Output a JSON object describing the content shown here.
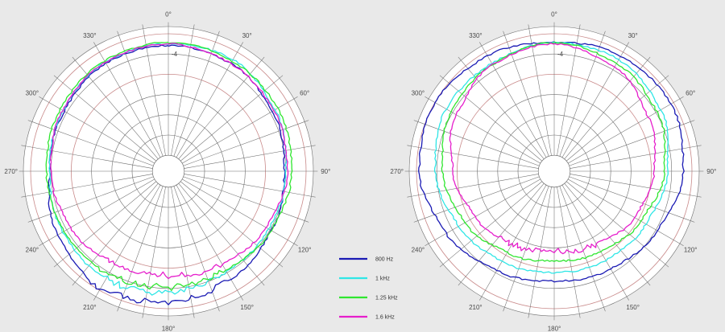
{
  "legend": {
    "placement": "bottom-center",
    "items": [
      {
        "label": "800 Hz",
        "color": "#1a1ab4"
      },
      {
        "label": "1 kHz",
        "color": "#2fe6e6"
      },
      {
        "label": "1.25 kHz",
        "color": "#2fe62f"
      },
      {
        "label": "1.6 kHz",
        "color": "#e61ecc"
      }
    ]
  },
  "chart_data": [
    {
      "type": "polar-line",
      "angle_ticks": [
        "0°",
        "30°",
        "60°",
        "90°",
        "120°",
        "150°",
        "180°",
        "210°",
        "240°",
        "270°",
        "300°",
        "330°"
      ],
      "radial_tick_labels": [
        "-4"
      ],
      "grid": true,
      "series": [
        {
          "name": "800 Hz",
          "color": "#1a1ab4",
          "angles": [
            0,
            30,
            60,
            90,
            120,
            150,
            180,
            210,
            240,
            270,
            300,
            330,
            360
          ],
          "radius": [
            0.87,
            0.86,
            0.83,
            0.8,
            0.82,
            0.86,
            0.91,
            0.93,
            0.88,
            0.82,
            0.83,
            0.86,
            0.87
          ]
        },
        {
          "name": "1 kHz",
          "color": "#2fe6e6",
          "angles": [
            0,
            30,
            60,
            90,
            120,
            150,
            180,
            210,
            240,
            270,
            300,
            330,
            360
          ],
          "radius": [
            0.88,
            0.89,
            0.85,
            0.81,
            0.8,
            0.8,
            0.84,
            0.86,
            0.84,
            0.82,
            0.84,
            0.87,
            0.88
          ]
        },
        {
          "name": "1.25 kHz",
          "color": "#2fe62f",
          "angles": [
            0,
            30,
            60,
            90,
            120,
            150,
            180,
            210,
            240,
            270,
            300,
            330,
            360
          ],
          "radius": [
            0.89,
            0.88,
            0.87,
            0.85,
            0.82,
            0.79,
            0.8,
            0.82,
            0.83,
            0.84,
            0.86,
            0.88,
            0.89
          ]
        },
        {
          "name": "1.6 kHz",
          "color": "#e61ecc",
          "angles": [
            0,
            30,
            60,
            90,
            120,
            150,
            180,
            210,
            240,
            270,
            300,
            330,
            360
          ],
          "radius": [
            0.88,
            0.86,
            0.84,
            0.82,
            0.78,
            0.74,
            0.72,
            0.74,
            0.78,
            0.81,
            0.84,
            0.87,
            0.88
          ]
        }
      ]
    },
    {
      "type": "polar-line",
      "angle_ticks": [
        "0°",
        "30°",
        "60°",
        "90°",
        "120°",
        "150°",
        "180°",
        "210°",
        "240°",
        "270°",
        "300°",
        "330°"
      ],
      "radial_tick_labels": [
        "-4"
      ],
      "grid": true,
      "series": [
        {
          "name": "800 Hz",
          "color": "#1a1ab4",
          "angles": [
            0,
            30,
            60,
            90,
            120,
            150,
            180,
            210,
            240,
            270,
            300,
            330,
            360
          ],
          "radius": [
            0.89,
            0.92,
            0.93,
            0.89,
            0.82,
            0.78,
            0.76,
            0.79,
            0.86,
            0.93,
            0.95,
            0.92,
            0.89
          ]
        },
        {
          "name": "1 kHz",
          "color": "#2fe6e6",
          "angles": [
            0,
            30,
            60,
            90,
            120,
            150,
            180,
            210,
            240,
            270,
            300,
            330,
            360
          ],
          "radius": [
            0.89,
            0.89,
            0.85,
            0.78,
            0.73,
            0.71,
            0.7,
            0.72,
            0.76,
            0.82,
            0.86,
            0.86,
            0.89
          ]
        },
        {
          "name": "1.25 kHz",
          "color": "#2fe62f",
          "angles": [
            0,
            30,
            60,
            90,
            120,
            150,
            180,
            210,
            240,
            270,
            300,
            330,
            360
          ],
          "radius": [
            0.89,
            0.86,
            0.82,
            0.76,
            0.69,
            0.64,
            0.62,
            0.65,
            0.71,
            0.77,
            0.82,
            0.85,
            0.89
          ]
        },
        {
          "name": "1.6 kHz",
          "color": "#e61ecc",
          "angles": [
            0,
            30,
            60,
            90,
            120,
            150,
            180,
            210,
            240,
            270,
            300,
            330,
            360
          ],
          "radius": [
            0.88,
            0.83,
            0.75,
            0.69,
            0.64,
            0.58,
            0.55,
            0.58,
            0.63,
            0.7,
            0.78,
            0.85,
            0.88
          ]
        }
      ]
    }
  ]
}
